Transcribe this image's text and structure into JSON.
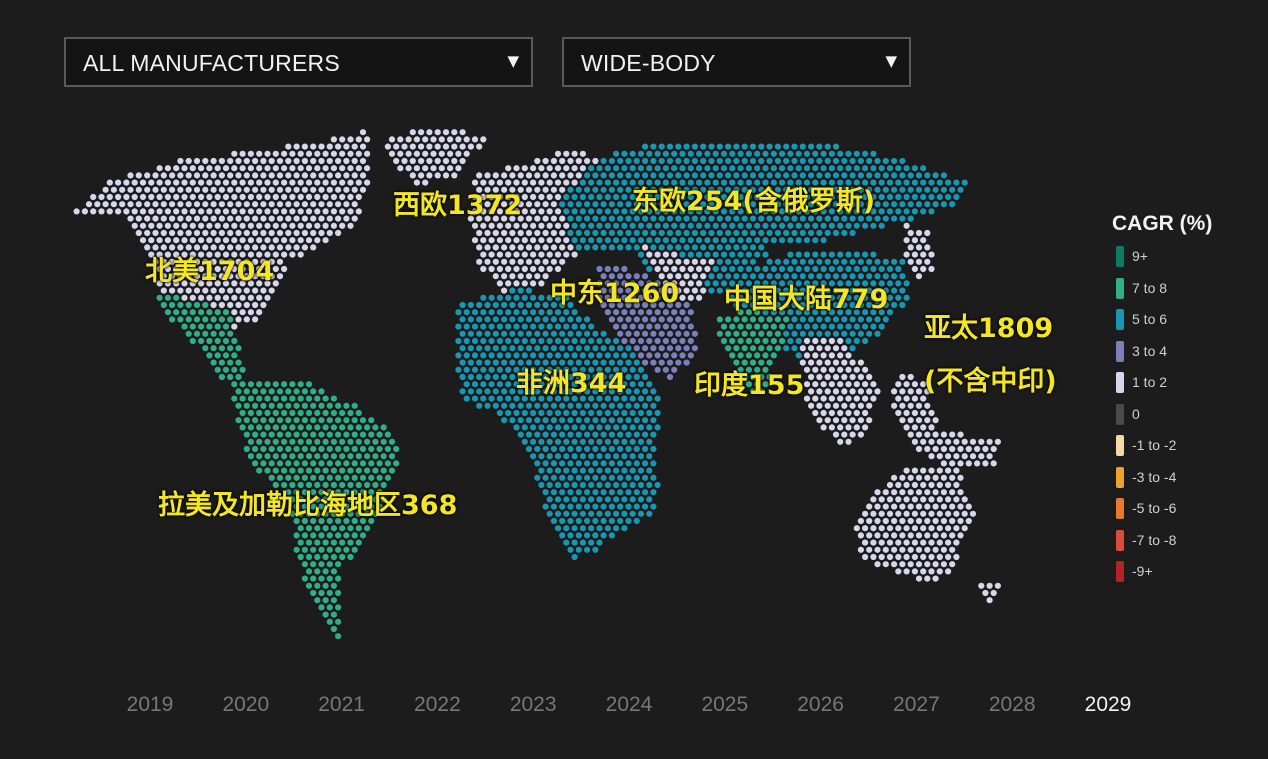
{
  "dropdowns": {
    "manufacturer": "ALL MANUFACTURERS",
    "body_type": "WIDE-BODY",
    "caret": "▼"
  },
  "regions": {
    "north_america": "北美1704",
    "western_europe": "西欧1372",
    "eastern_europe": "东欧254(含俄罗斯)",
    "middle_east": "中东1260",
    "china": "中国大陆779",
    "asia_pacific_line1": "亚太1809",
    "asia_pacific_line2": "(不含中印)",
    "africa": "非洲344",
    "india": "印度155",
    "latin_america": "拉美及加勒比海地区368"
  },
  "legend": {
    "title": "CAGR (%)",
    "items": [
      {
        "label": "9+",
        "color": "#0f7a67"
      },
      {
        "label": "7 to 8",
        "color": "#2fae87"
      },
      {
        "label": "5 to 6",
        "color": "#1896b2"
      },
      {
        "label": "3 to 4",
        "color": "#7b80bd"
      },
      {
        "label": "1 to 2",
        "color": "#d8d6ec"
      },
      {
        "label": "0",
        "color": "#4a4a4a"
      },
      {
        "label": "-1 to -2",
        "color": "#f7d9a8"
      },
      {
        "label": "-3 to -4",
        "color": "#f0a12e"
      },
      {
        "label": "-5 to -6",
        "color": "#e8782b"
      },
      {
        "label": "-7 to -8",
        "color": "#dd4a3a"
      },
      {
        "label": "-9+",
        "color": "#b52424"
      }
    ]
  },
  "timeline": {
    "years": [
      "2019",
      "2020",
      "2021",
      "2022",
      "2023",
      "2024",
      "2025",
      "2026",
      "2027",
      "2028",
      "2029"
    ],
    "active": "2029"
  },
  "map_colors": {
    "north_america": "#d8d6ec",
    "mexico": "#2fae87",
    "south_america": "#2fae87",
    "western_europe": "#d8d6ec",
    "eastern_europe": "#1896b2",
    "middle_east": "#7b80bd",
    "africa": "#1896b2",
    "central_asia": "#1896b2",
    "china": "#1896b2",
    "india": "#2fae87",
    "asia_pacific": "#d8d6ec",
    "oceania": "#d8d6ec"
  }
}
